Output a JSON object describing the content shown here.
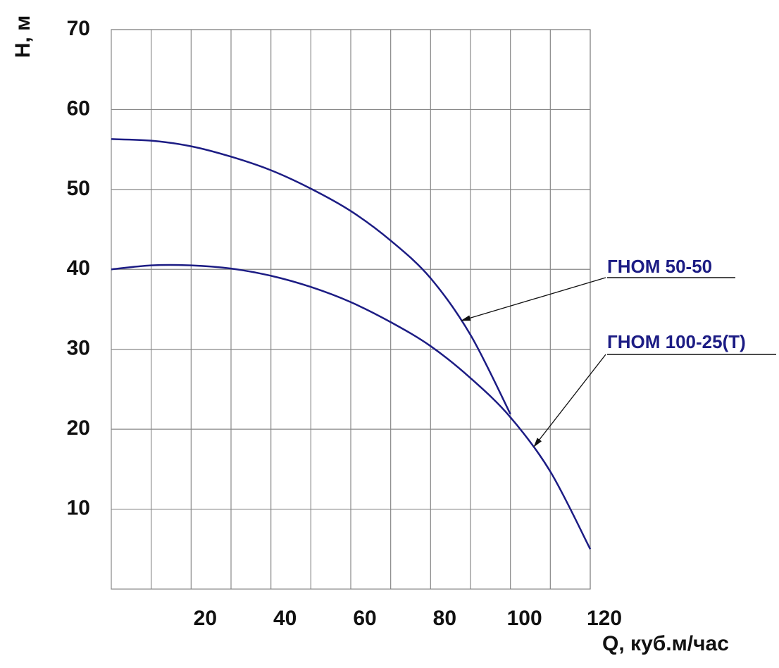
{
  "chart_data": {
    "type": "line",
    "y_label": "H, м",
    "x_label": "Q, куб.м/час",
    "xlim": [
      0,
      120
    ],
    "ylim": [
      0,
      70
    ],
    "xticks": [
      20,
      40,
      60,
      80,
      100,
      120
    ],
    "x_minor_ticks": [
      10,
      30,
      50,
      70,
      90,
      110
    ],
    "yticks": [
      10,
      20,
      30,
      40,
      50,
      60,
      70
    ],
    "grid": true,
    "series": [
      {
        "name": "ГНОМ 50-50",
        "color": "#1c1c84",
        "x": [
          0,
          10,
          20,
          30,
          40,
          50,
          60,
          70,
          80,
          90,
          100
        ],
        "values": [
          56.3,
          56.1,
          55.4,
          54.1,
          52.4,
          50.1,
          47.3,
          43.6,
          38.9,
          31.8,
          21.9
        ]
      },
      {
        "name": "ГНОМ 100-25(Т)",
        "color": "#1c1c84",
        "x": [
          0,
          10,
          20,
          30,
          40,
          50,
          60,
          70,
          80,
          90,
          100,
          110,
          120
        ],
        "values": [
          40,
          40.5,
          40.5,
          40.1,
          39.2,
          37.8,
          35.9,
          33.4,
          30.4,
          26.4,
          21.5,
          14.7,
          5
        ]
      }
    ]
  }
}
